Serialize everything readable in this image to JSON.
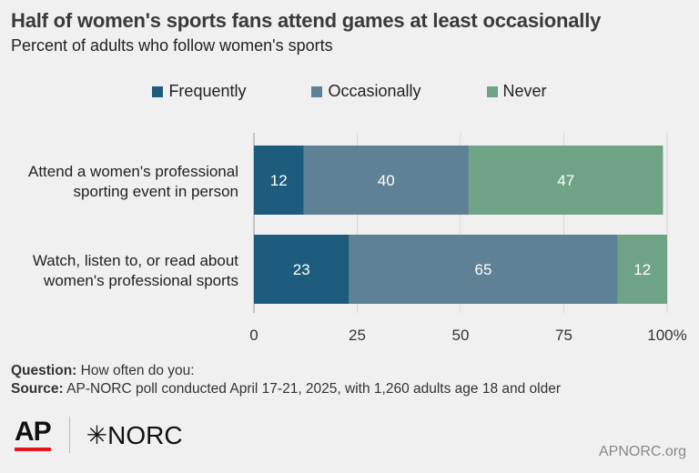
{
  "chart_data": {
    "type": "bar",
    "orientation": "horizontal",
    "stacked": true,
    "title": "Half of women's sports fans attend games at least occasionally",
    "subtitle": "Percent of adults who follow women's sports",
    "categories": [
      [
        "Attend a women's professional",
        "sporting event in person"
      ],
      [
        "Watch, listen to, or read about",
        "women's professional sports"
      ]
    ],
    "series": [
      {
        "name": "Frequently",
        "color": "#1d5c7c",
        "values": [
          12,
          23
        ]
      },
      {
        "name": "Occasionally",
        "color": "#5e8196",
        "values": [
          40,
          65
        ]
      },
      {
        "name": "Never",
        "color": "#6fa386",
        "values": [
          47,
          12
        ]
      }
    ],
    "xlim": [
      0,
      100
    ],
    "xticks": [
      "0",
      "25",
      "50",
      "75",
      "100%"
    ],
    "grid": true,
    "legend": "top-center"
  },
  "notes": {
    "question_label": "Question:",
    "question_text": " How often do you:",
    "source_label": "Source:",
    "source_text": " AP-NORC poll conducted April 17-21, 2025, with 1,260 adults age 18 and older"
  },
  "logos": {
    "ap": "AP",
    "norc": "NORC",
    "norc_mark": "✳"
  },
  "site": "APNORC.org"
}
